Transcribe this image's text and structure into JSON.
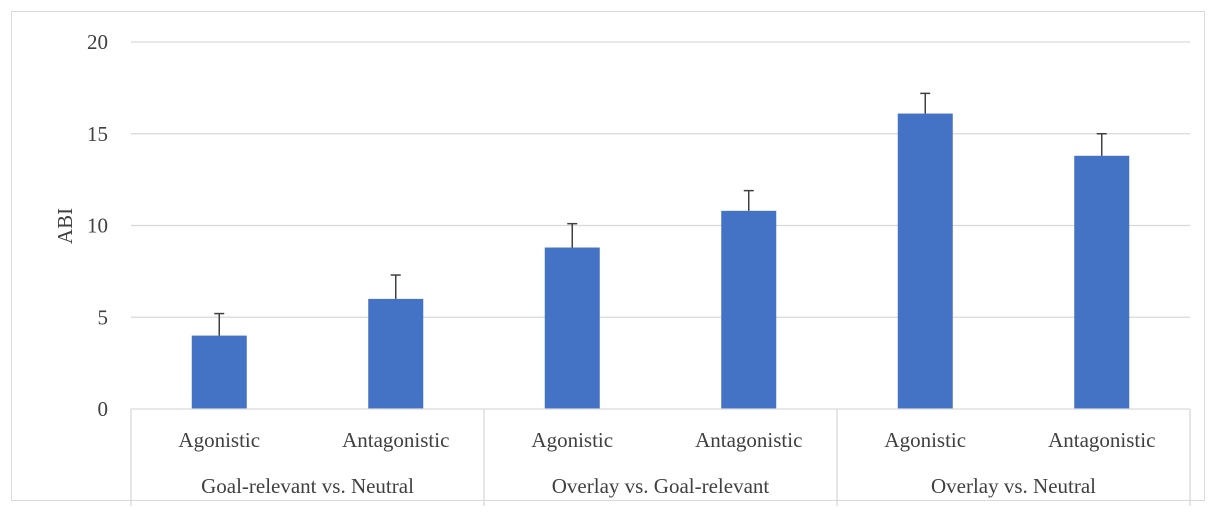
{
  "chart_data": {
    "type": "bar",
    "ylabel": "ABI",
    "ylim": [
      0,
      20
    ],
    "yticks": [
      "0",
      "5",
      "10",
      "15",
      "20"
    ],
    "ytick_values": [
      0,
      5,
      10,
      15,
      20
    ],
    "grid": true,
    "bar_color": "#4472C4",
    "gridline_color": "#d9d9d9",
    "groups": [
      {
        "label": "Goal-relevant vs. Neutral",
        "categories": [
          "Agonistic",
          "Antagonistic"
        ]
      },
      {
        "label": "Overlay vs. Goal-relevant",
        "categories": [
          "Agonistic",
          "Antagonistic"
        ]
      },
      {
        "label": "Overlay vs. Neutral",
        "categories": [
          "Agonistic",
          "Antagonistic"
        ]
      }
    ],
    "values": [
      4.0,
      6.0,
      8.8,
      10.8,
      16.1,
      13.8
    ],
    "error_plus": [
      1.2,
      1.3,
      1.3,
      1.1,
      1.1,
      1.2
    ]
  }
}
